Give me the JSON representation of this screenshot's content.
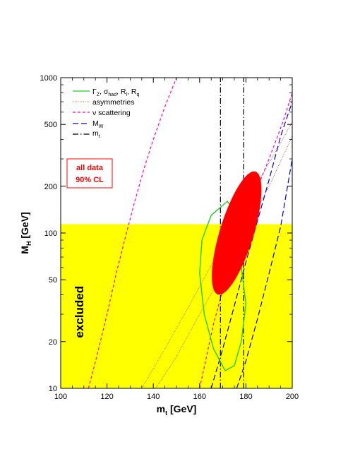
{
  "chart_data": {
    "type": "line",
    "title": "",
    "xlabel_main": "m",
    "xlabel_sub": "t",
    "xlabel_unit": " [GeV]",
    "ylabel_main": "M",
    "ylabel_sub": "H",
    "ylabel_unit": " [GeV]",
    "xlim": [
      100,
      200
    ],
    "ylim": [
      10,
      1000
    ],
    "yscale": "log",
    "x_ticks": [
      100,
      120,
      140,
      160,
      180,
      200
    ],
    "x_tick_labels": [
      "100",
      "120",
      "140",
      "160",
      "180",
      "200"
    ],
    "y_ticks": [
      10,
      20,
      50,
      100,
      200,
      500,
      1000
    ],
    "y_tick_labels": [
      "10",
      "20",
      "50",
      "100",
      "200",
      "500",
      "1000"
    ],
    "grid": false,
    "excluded_region": {
      "label": "excluded",
      "y_max": 114,
      "color": "#ffff00"
    },
    "allowed_region": {
      "center": [
        176,
        100
      ],
      "color": "#ff0000"
    },
    "annotation": {
      "line1": "all data",
      "line2": "90% CL",
      "color": "#ff0000"
    },
    "legend": {
      "placement": "top-left",
      "items": [
        {
          "key": "gamma",
          "html_main": "Γ",
          "html_sub": "Z",
          "rest": [
            ", σ",
            "had",
            ", R",
            "l",
            ", R",
            "q"
          ],
          "color": "#22cc22",
          "dash": "solid"
        },
        {
          "key": "asym",
          "text": "asymmetries",
          "color": "#b06050",
          "dash": "dotted"
        },
        {
          "key": "nu",
          "text": "ν scattering",
          "color": "#ff00cc",
          "dash": "dashed"
        },
        {
          "key": "mw",
          "text_main": "M",
          "text_sub": "W",
          "color": "#0000dd",
          "dash": "longdash"
        },
        {
          "key": "mt",
          "text_main": "m",
          "text_sub": "t",
          "color": "#000000",
          "dash": "dashdot"
        }
      ]
    },
    "series": [
      {
        "key": "nu_left",
        "color": "#ff00cc",
        "dash": "dashed",
        "x": [
          112,
          116,
          120,
          124,
          128,
          132,
          136,
          140,
          145,
          150
        ],
        "y": [
          10,
          17,
          30,
          55,
          95,
          160,
          260,
          400,
          650,
          1000
        ]
      },
      {
        "key": "nu_right",
        "color": "#ff00cc",
        "dash": "dashed",
        "x": [
          160,
          166,
          172,
          178,
          184,
          190,
          196,
          200
        ],
        "y": [
          10,
          26,
          55,
          100,
          180,
          300,
          520,
          800
        ]
      },
      {
        "key": "asym_left",
        "color": "#b06050",
        "dash": "dotted",
        "x": [
          135,
          145,
          155,
          165,
          175,
          185,
          195,
          200
        ],
        "y": [
          10,
          18,
          33,
          62,
          115,
          210,
          380,
          520
        ]
      },
      {
        "key": "asym_right",
        "color": "#b06050",
        "dash": "dotted",
        "x": [
          141,
          150,
          160,
          170,
          180,
          190,
          200
        ],
        "y": [
          10,
          16,
          30,
          55,
          105,
          200,
          420
        ]
      },
      {
        "key": "mw_left",
        "color": "#0000dd",
        "dash": "longdash",
        "x": [
          165,
          170,
          175,
          180,
          185,
          190,
          195,
          200
        ],
        "y": [
          10,
          18,
          34,
          65,
          120,
          220,
          420,
          700
        ]
      },
      {
        "key": "mw_right",
        "color": "#0000dd",
        "dash": "longdash",
        "x": [
          176,
          180,
          185,
          190,
          195,
          200
        ],
        "y": [
          10,
          15,
          28,
          55,
          110,
          300
        ]
      },
      {
        "key": "mt_left",
        "color": "#000000",
        "dash": "dashdot",
        "x": [
          169,
          169
        ],
        "y": [
          10,
          1000
        ]
      },
      {
        "key": "mt_right",
        "color": "#000000",
        "dash": "dashdot",
        "x": [
          179,
          179
        ],
        "y": [
          10,
          1000
        ]
      }
    ],
    "ellipse_green": {
      "color": "#22cc22",
      "x": [
        172,
        165,
        161,
        160,
        162,
        166,
        171,
        175,
        178,
        180,
        178,
        176,
        174,
        172
      ],
      "y": [
        160,
        130,
        90,
        55,
        30,
        18,
        13,
        14,
        20,
        35,
        60,
        100,
        145,
        160
      ]
    }
  }
}
